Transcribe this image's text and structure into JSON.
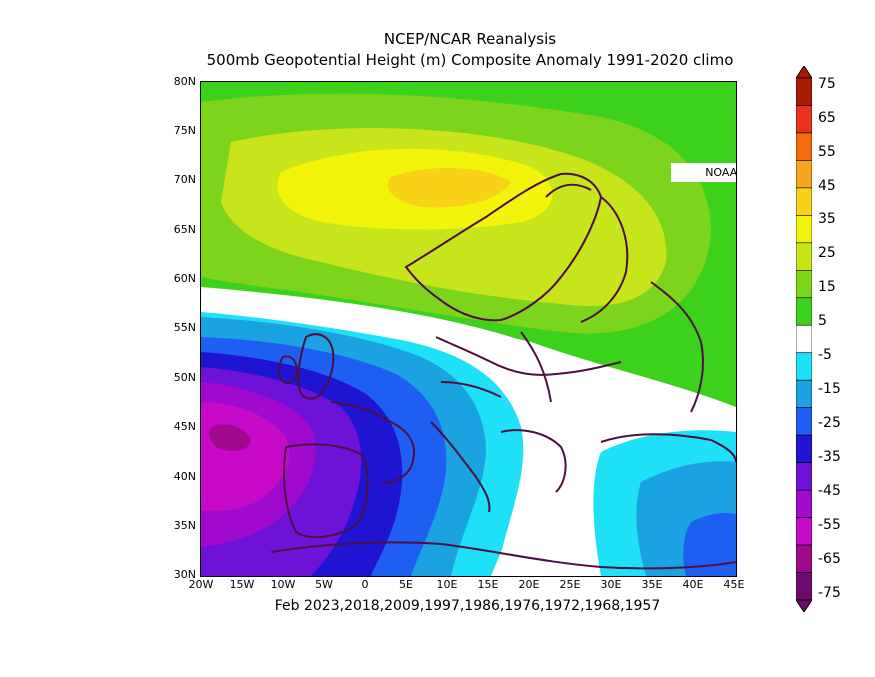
{
  "title": "NCEP/NCAR Reanalysis",
  "subtitle": "500mb Geopotential Height (m) Composite Anomaly 1991-2020 climo",
  "credit": "NOAA Physical Sciences Laboratory",
  "bottom_caption": "Feb 2023,2018,2009,1997,1986,1976,1972,1968,1957",
  "lat_labels": [
    "80N",
    "75N",
    "70N",
    "65N",
    "60N",
    "55N",
    "50N",
    "45N",
    "40N",
    "35N",
    "30N"
  ],
  "lon_labels": [
    "20W",
    "15W",
    "10W",
    "5W",
    "0",
    "5E",
    "10E",
    "15E",
    "20E",
    "25E",
    "30E",
    "35E",
    "40E",
    "45E"
  ],
  "colorbar": {
    "labels": [
      "75",
      "65",
      "55",
      "45",
      "35",
      "25",
      "15",
      "5",
      "-5",
      "-15",
      "-25",
      "-35",
      "-45",
      "-55",
      "-65",
      "-75"
    ],
    "colors": [
      "#a81b00",
      "#e8321c",
      "#f26b0d",
      "#f7a51f",
      "#f7d219",
      "#f2f50a",
      "#c8e41a",
      "#7dd41c",
      "#3cd21c",
      "#ffffff",
      "#1ee1f7",
      "#1aa3e0",
      "#1e5ff2",
      "#1e14d2",
      "#6e12d8",
      "#a00acf",
      "#c60ac8",
      "#a0098c",
      "#6e0a6e"
    ]
  },
  "map_fields": {
    "colors": {
      "pos5": "#3cd21c",
      "pos15": "#7dd41c",
      "pos25": "#c8e41a",
      "pos35": "#f2f50a",
      "neg5": "#1ee1f7",
      "neg15": "#1aa3e0",
      "neg25": "#1e5ff2",
      "neg35": "#1e14d2",
      "neg45": "#6e12d8",
      "neg55": "#a00acf",
      "neg65": "#c60ac8",
      "coast": "#4a1040"
    }
  }
}
